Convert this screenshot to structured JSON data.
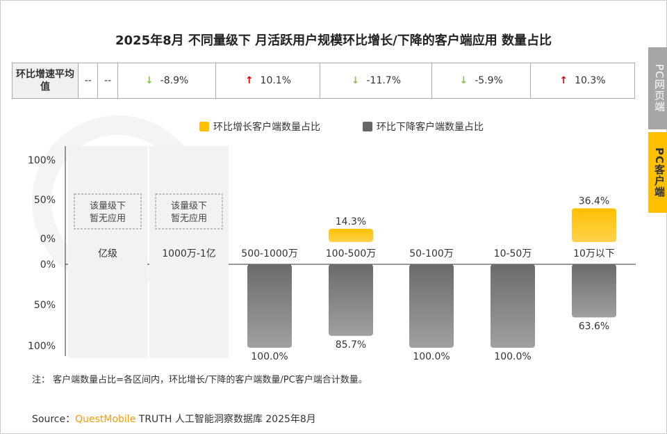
{
  "title": "2025年8月 不同量级下 月活跃用户规模环比增长/下降的客户端应用 数量占比",
  "table": {
    "header": "环比增速平均值",
    "cells": [
      {
        "value": "--",
        "dir": ""
      },
      {
        "value": "--",
        "dir": ""
      },
      {
        "value": "-8.9%",
        "dir": "down"
      },
      {
        "value": "10.1%",
        "dir": "up"
      },
      {
        "value": "-11.7%",
        "dir": "down"
      },
      {
        "value": "-5.9%",
        "dir": "down"
      },
      {
        "value": "10.3%",
        "dir": "up"
      }
    ]
  },
  "tabs": {
    "web": "PC网页端",
    "client": "PC客户端"
  },
  "note": "注：  客户端数量占比=各区间内，环比增长/下降的客户端数量/PC客户端合计数量。",
  "source": {
    "prefix": "Source：",
    "brand": "QuestMobile",
    "rest": " TRUTH 人工智能洞察数据库 2025年8月"
  },
  "watermark": "QUEST MOBILE",
  "colors": {
    "growth": "#ffc000",
    "decline": "#7f7f7f",
    "up_arrow": "#e00000",
    "down_arrow": "#8bc34a",
    "brand": "#ff9900"
  },
  "chart_data": {
    "type": "bar",
    "categories": [
      "亿级",
      "1000万-1亿",
      "500-1000万",
      "100-500万",
      "50-100万",
      "10-50万",
      "10万以下"
    ],
    "series": [
      {
        "name": "环比增长客户端数量占比",
        "values": [
          null,
          null,
          0,
          14.3,
          0,
          0,
          36.4
        ],
        "labels": [
          "",
          "",
          "",
          "14.3%",
          "",
          "",
          "36.4%"
        ]
      },
      {
        "name": "环比下降客户端数量占比",
        "values": [
          null,
          null,
          100,
          85.7,
          100,
          100,
          63.6
        ],
        "labels": [
          "",
          "",
          "100.0%",
          "85.7%",
          "100.0%",
          "100.0%",
          "63.6%"
        ]
      }
    ],
    "no_app_label": "该量级下暂无应用",
    "upper_ticks": [
      "100%",
      "50%",
      "0%"
    ],
    "lower_ticks": [
      "0%",
      "50%",
      "100%"
    ],
    "ylim": [
      0,
      100
    ]
  }
}
